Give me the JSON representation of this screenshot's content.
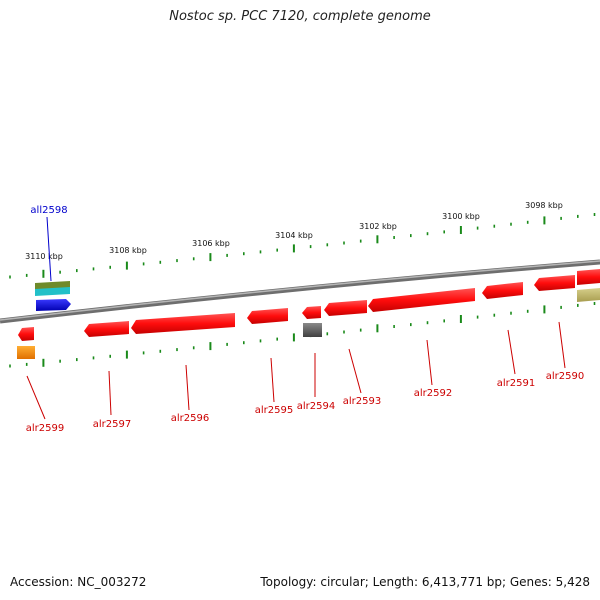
{
  "title": "Nostoc sp. PCC 7120, complete genome",
  "footer": {
    "accession": "Accession: NC_003272",
    "topology": "Topology: circular; Length: 6,413,771 bp; Genes: 5,428"
  },
  "scale": {
    "ticks": [
      "3110 kbp",
      "3108 kbp",
      "3106 kbp",
      "3104 kbp",
      "3102 kbp",
      "3100 kbp",
      "3098 kbp"
    ]
  },
  "colors": {
    "label_reverse": "#cc0000",
    "label_forward": "#0000cc",
    "gene_red": "#ff1111",
    "tick_green": "#1a8a1a",
    "backbone": "#8a8a8a"
  },
  "genes": [
    {
      "name": "all2598",
      "color": "#0000cc",
      "strand": "forward"
    },
    {
      "name": "alr2599",
      "color": "#cc0000"
    },
    {
      "name": "alr2597",
      "color": "#cc0000"
    },
    {
      "name": "alr2596",
      "color": "#cc0000"
    },
    {
      "name": "alr2595",
      "color": "#cc0000"
    },
    {
      "name": "alr2594",
      "color": "#cc0000"
    },
    {
      "name": "alr2593",
      "color": "#cc0000"
    },
    {
      "name": "alr2592",
      "color": "#cc0000"
    },
    {
      "name": "alr2591",
      "color": "#cc0000"
    },
    {
      "name": "alr2590",
      "color": "#cc0000"
    }
  ]
}
